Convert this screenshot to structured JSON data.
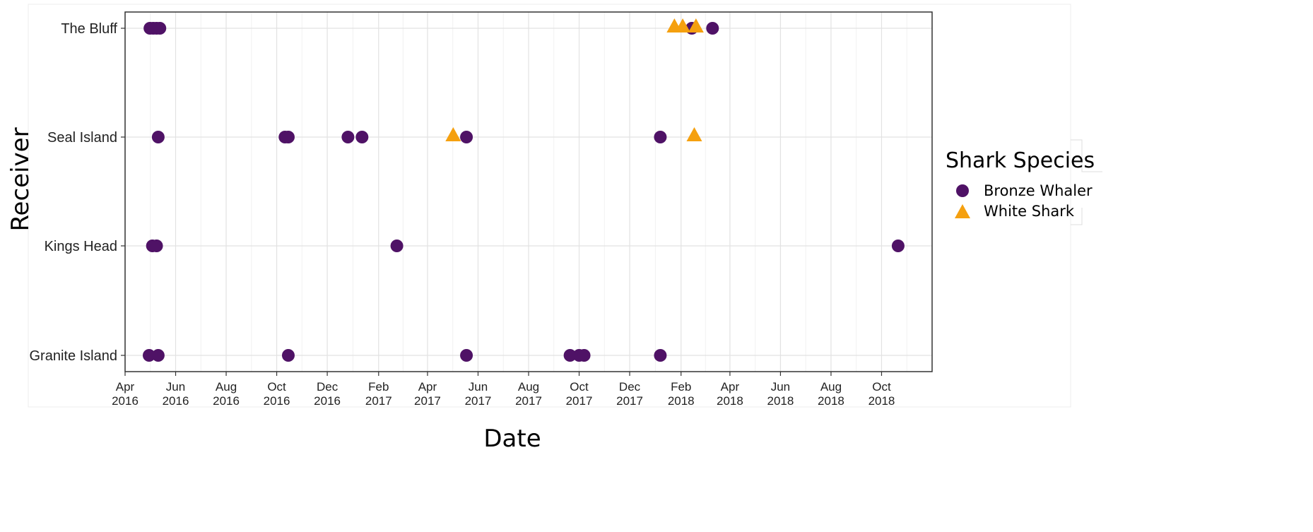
{
  "chart_data": {
    "type": "scatter",
    "xlabel": "Date",
    "ylabel": "Receiver",
    "x_axis_type": "date",
    "xlim": [
      "2016-04-01",
      "2018-12-01"
    ],
    "x_ticks": [
      {
        "date": "2016-04-01",
        "label": [
          "Apr",
          "2016"
        ]
      },
      {
        "date": "2016-06-01",
        "label": [
          "Jun",
          "2016"
        ]
      },
      {
        "date": "2016-08-01",
        "label": [
          "Aug",
          "2016"
        ]
      },
      {
        "date": "2016-10-01",
        "label": [
          "Oct",
          "2016"
        ]
      },
      {
        "date": "2016-12-01",
        "label": [
          "Dec",
          "2016"
        ]
      },
      {
        "date": "2017-02-01",
        "label": [
          "Feb",
          "2017"
        ]
      },
      {
        "date": "2017-04-01",
        "label": [
          "Apr",
          "2017"
        ]
      },
      {
        "date": "2017-06-01",
        "label": [
          "Jun",
          "2017"
        ]
      },
      {
        "date": "2017-08-01",
        "label": [
          "Aug",
          "2017"
        ]
      },
      {
        "date": "2017-10-01",
        "label": [
          "Oct",
          "2017"
        ]
      },
      {
        "date": "2017-12-01",
        "label": [
          "Dec",
          "2017"
        ]
      },
      {
        "date": "2018-02-01",
        "label": [
          "Feb",
          "2018"
        ]
      },
      {
        "date": "2018-04-01",
        "label": [
          "Apr",
          "2018"
        ]
      },
      {
        "date": "2018-06-01",
        "label": [
          "Jun",
          "2018"
        ]
      },
      {
        "date": "2018-08-01",
        "label": [
          "Aug",
          "2018"
        ]
      },
      {
        "date": "2018-10-01",
        "label": [
          "Oct",
          "2018"
        ]
      }
    ],
    "categories": [
      "The Bluff",
      "Seal Island",
      "Kings Head",
      "Granite Island"
    ],
    "grid": true,
    "legend": {
      "title": "Shark Species",
      "position": "right"
    },
    "series": [
      {
        "name": "Bronze Whaler",
        "marker": "circle",
        "color": "#4f1266",
        "points": [
          {
            "x": "2016-05-01",
            "y": "The Bluff"
          },
          {
            "x": "2016-05-05",
            "y": "The Bluff"
          },
          {
            "x": "2016-05-09",
            "y": "The Bluff"
          },
          {
            "x": "2016-05-13",
            "y": "The Bluff"
          },
          {
            "x": "2018-02-14",
            "y": "The Bluff"
          },
          {
            "x": "2018-03-11",
            "y": "The Bluff"
          },
          {
            "x": "2016-05-11",
            "y": "Seal Island"
          },
          {
            "x": "2016-10-11",
            "y": "Seal Island"
          },
          {
            "x": "2016-10-15",
            "y": "Seal Island"
          },
          {
            "x": "2016-12-26",
            "y": "Seal Island"
          },
          {
            "x": "2017-01-12",
            "y": "Seal Island"
          },
          {
            "x": "2017-05-18",
            "y": "Seal Island"
          },
          {
            "x": "2018-01-07",
            "y": "Seal Island"
          },
          {
            "x": "2016-05-04",
            "y": "Kings Head"
          },
          {
            "x": "2016-05-09",
            "y": "Kings Head"
          },
          {
            "x": "2017-02-23",
            "y": "Kings Head"
          },
          {
            "x": "2018-10-21",
            "y": "Kings Head"
          },
          {
            "x": "2016-04-30",
            "y": "Granite Island"
          },
          {
            "x": "2016-05-11",
            "y": "Granite Island"
          },
          {
            "x": "2016-10-15",
            "y": "Granite Island"
          },
          {
            "x": "2017-05-18",
            "y": "Granite Island"
          },
          {
            "x": "2017-09-20",
            "y": "Granite Island"
          },
          {
            "x": "2017-10-01",
            "y": "Granite Island"
          },
          {
            "x": "2017-10-07",
            "y": "Granite Island"
          },
          {
            "x": "2018-01-07",
            "y": "Granite Island"
          }
        ]
      },
      {
        "name": "White Shark",
        "marker": "triangle",
        "color": "#f5a00f",
        "points": [
          {
            "x": "2018-01-24",
            "y": "The Bluff"
          },
          {
            "x": "2018-02-03",
            "y": "The Bluff"
          },
          {
            "x": "2018-02-19",
            "y": "The Bluff"
          },
          {
            "x": "2017-05-02",
            "y": "Seal Island"
          },
          {
            "x": "2018-02-17",
            "y": "Seal Island"
          }
        ]
      }
    ]
  }
}
